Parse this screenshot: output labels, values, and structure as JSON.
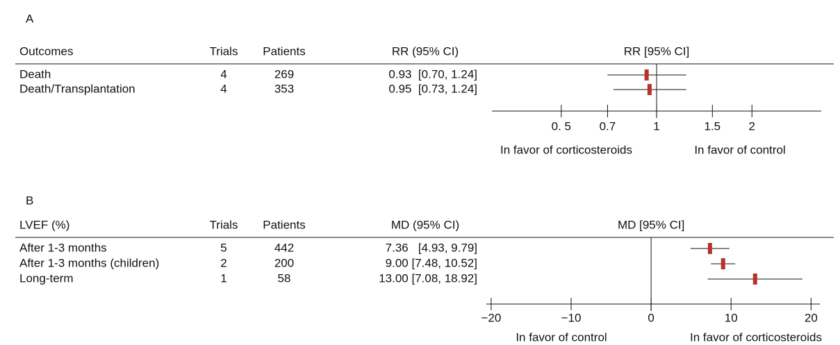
{
  "chart_data": [
    {
      "type": "forest",
      "panel": "A",
      "columns": [
        "Outcomes",
        "Trials",
        "Patients",
        "RR (95% CI)"
      ],
      "plot_title": "RR [95% CI]",
      "categories": [
        "Death",
        "Death/Transplantation"
      ],
      "trials": [
        4,
        4
      ],
      "patients": [
        269,
        353
      ],
      "values": [
        0.93,
        0.95
      ],
      "ci_low": [
        0.7,
        0.73
      ],
      "ci_high": [
        1.24,
        1.24
      ],
      "value_labels": [
        "0.93  [0.70, 1.24]",
        "0.95  [0.73, 1.24]"
      ],
      "color": "#b5332a",
      "log_x": true,
      "reference_line": 1,
      "xlim": [
        0.302,
        3.31
      ],
      "xticks": [
        {
          "value": 0.5,
          "label": "0. 5"
        },
        0.7,
        1,
        1.5,
        2
      ],
      "favor_left": "In favor of corticosteroids",
      "favor_right": "In favor of control"
    },
    {
      "type": "forest",
      "panel": "B",
      "columns": [
        "LVEF (%)",
        "Trials",
        "Patients",
        "MD (95% CI)"
      ],
      "plot_title": "MD [95% CI]",
      "categories": [
        "After 1-3 months",
        "After 1-3 months (children)",
        "Long-term"
      ],
      "trials": [
        5,
        2,
        1
      ],
      "patients": [
        442,
        200,
        58
      ],
      "values": [
        7.36,
        9,
        13
      ],
      "ci_low": [
        4.93,
        7.48,
        7.08
      ],
      "ci_high": [
        9.79,
        10.52,
        18.92
      ],
      "value_labels": [
        "7.36   [4.93, 9.79]",
        "9.00 [7.48, 10.52]",
        "13.00 [7.08, 18.92]"
      ],
      "color": "#b5332a",
      "log_x": false,
      "reference_line": 0,
      "xlim": [
        -20.6,
        21.1
      ],
      "xticks": [
        {
          "value": -20,
          "label": "−20"
        },
        {
          "value": -10,
          "label": "−10"
        },
        0,
        10,
        20
      ],
      "favor_left": "In favor of control",
      "favor_right": "In favor of corticosteroids"
    }
  ]
}
